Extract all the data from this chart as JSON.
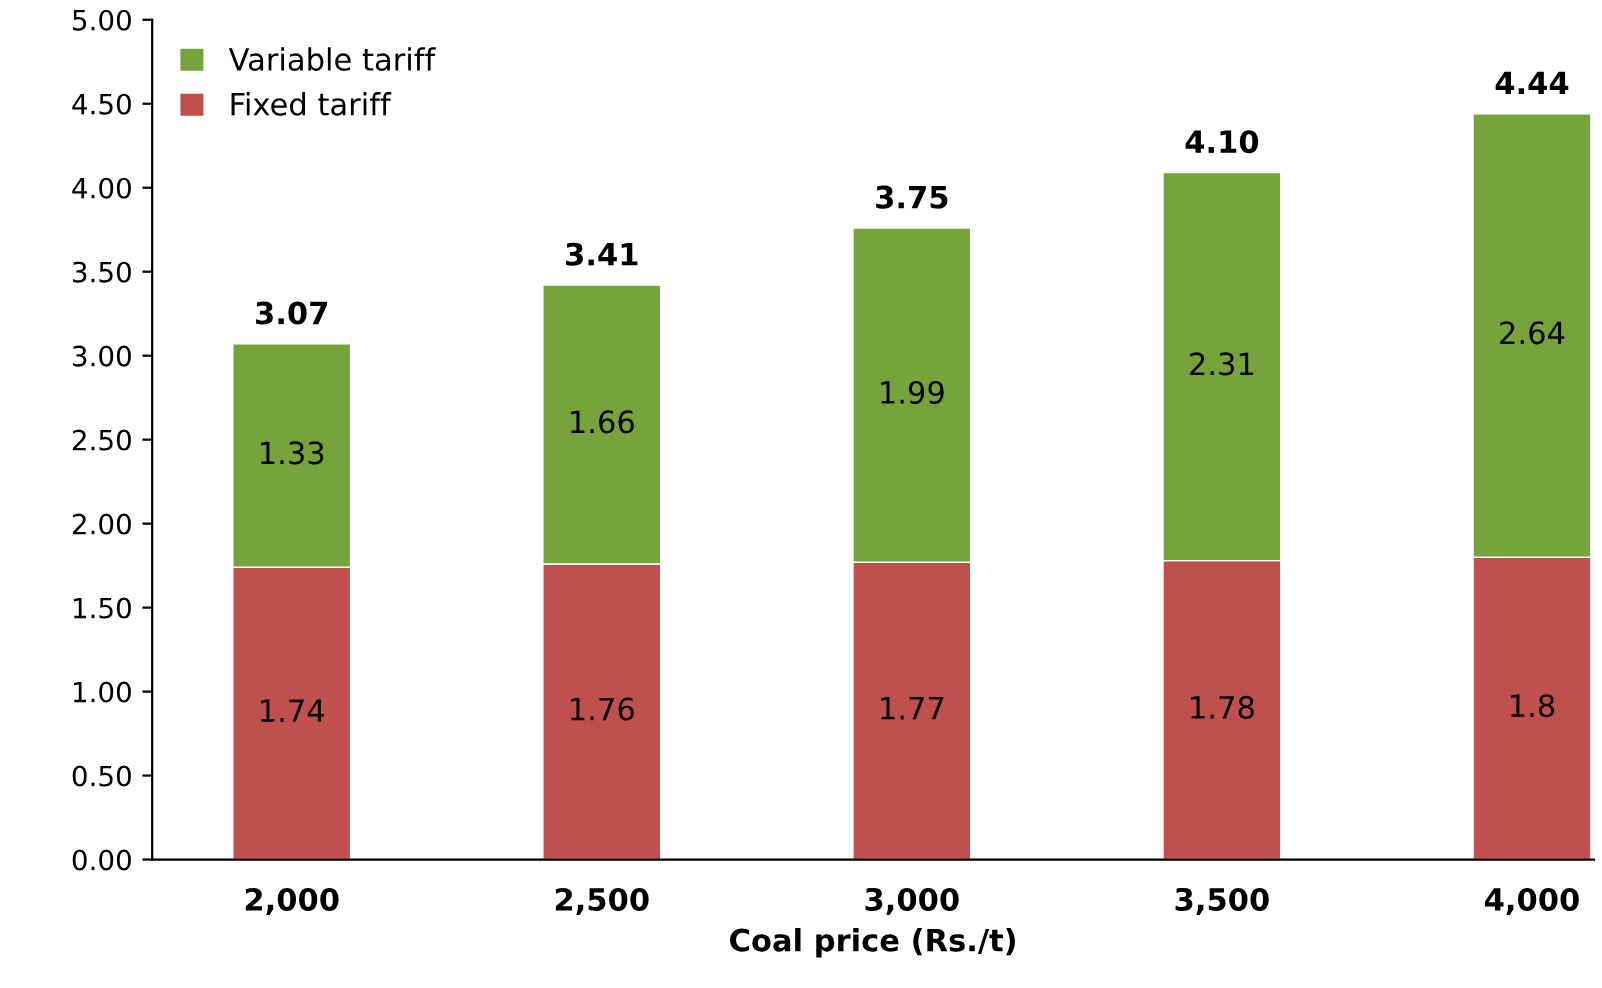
{
  "chart_data": {
    "type": "bar",
    "stacked": true,
    "xlabel": "Coal price (Rs./t)",
    "categories": [
      "2,000",
      "2,500",
      "3,000",
      "3,500",
      "4,000"
    ],
    "series": [
      {
        "name": "Fixed tariff",
        "color": "#c0504d",
        "values": [
          1.74,
          1.76,
          1.77,
          1.78,
          1.8
        ]
      },
      {
        "name": "Variable tariff",
        "color": "#77a33c",
        "values": [
          1.33,
          1.66,
          1.99,
          2.31,
          2.64
        ]
      }
    ],
    "totals": [
      "3.07",
      "3.41",
      "3.75",
      "4.10",
      "4.44"
    ],
    "data_labels": true,
    "ylim": [
      0,
      5
    ],
    "yticks": [
      {
        "value": 0,
        "label": "0.00"
      },
      {
        "value": 0.5,
        "label": "0.50"
      },
      {
        "value": 1,
        "label": "1.00"
      },
      {
        "value": 1.5,
        "label": "1.50"
      },
      {
        "value": 2,
        "label": "2.00"
      },
      {
        "value": 2.5,
        "label": "2.50"
      },
      {
        "value": 3,
        "label": "3.00"
      },
      {
        "value": 3.5,
        "label": "3.50"
      },
      {
        "value": 4,
        "label": "4.00"
      },
      {
        "value": 4.5,
        "label": "4.50"
      },
      {
        "value": 5,
        "label": "5.00"
      }
    ],
    "grid": false,
    "legend": "top left"
  }
}
